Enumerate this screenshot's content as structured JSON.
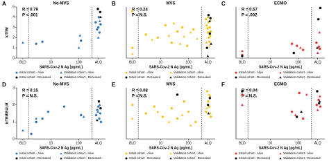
{
  "chart_data": [
    {
      "type": "scatter",
      "panel": "A",
      "title": "No-MVS",
      "annotations": [
        "R = 0.79",
        "P < .001"
      ],
      "x_label": "SARS-Cov-2 N Ag [pg/mL]",
      "y_label": "IcTRM",
      "x_scale": "log",
      "xlim": [
        0.6,
        900
      ],
      "xticks": [
        {
          "value": 1,
          "label": "BLD"
        },
        10,
        100,
        {
          "value": 500,
          "label": "ALQ"
        }
      ],
      "ylim": [
        0,
        5
      ],
      "yticks": [
        0,
        1,
        2,
        3,
        4,
        5
      ],
      "reference_lines": [
        1.6,
        300
      ],
      "series": [
        {
          "name": "Initial cohort - Alive",
          "color": "#2e75b6",
          "marker": "circle",
          "x": [
            3,
            5,
            120,
            400,
            450,
            500,
            520,
            550,
            600
          ],
          "values": [
            1.4,
            1.6,
            1.7,
            3.5,
            2.8,
            3.0,
            4.0,
            2.5,
            3.3
          ]
        },
        {
          "name": "Validation cohort - Alive",
          "color": "#2e75b6",
          "marker": "triangle",
          "x": [
            1,
            100,
            110,
            500,
            560
          ],
          "values": [
            1.5,
            1.0,
            2.2,
            2.0,
            3.6
          ]
        },
        {
          "name": "Initial cohort - Deceased",
          "color": "#000000",
          "marker": "circle",
          "x": [
            480,
            580
          ],
          "values": [
            4.8,
            4.5
          ]
        },
        {
          "name": "Validation cohort - Deceased",
          "color": "#000000",
          "marker": "triangle",
          "x": [
            600
          ],
          "values": [
            4.0
          ]
        }
      ]
    },
    {
      "type": "scatter",
      "panel": "B",
      "title": "MVS",
      "annotations": [
        "R = 0.24",
        "P = N.S."
      ],
      "x_label": "SARS-Cov-2 N Ag [pg/mL]",
      "x_scale": "log",
      "xlim": [
        0.6,
        900
      ],
      "xticks": [
        {
          "value": 1,
          "label": "BLD"
        },
        10,
        100,
        {
          "value": 500,
          "label": "ALQ"
        }
      ],
      "ylim": [
        0,
        5
      ],
      "reference_lines": [
        1.6,
        300
      ],
      "series": [
        {
          "name": "Initial cohort - Alive",
          "color": "#f2c01e",
          "marker": "circle",
          "x": [
            1,
            1,
            3,
            8,
            15,
            25,
            40,
            60,
            90,
            150,
            420,
            450,
            480,
            500,
            520,
            540,
            560,
            580,
            600,
            620
          ],
          "values": [
            4.6,
            1.0,
            2.3,
            2.0,
            3.2,
            1.5,
            2.6,
            3.0,
            1.2,
            2.8,
            3.8,
            3.2,
            2.9,
            2.5,
            3.5,
            2.0,
            1.6,
            3.0,
            2.2,
            2.6
          ]
        },
        {
          "name": "Validation cohort - Alive",
          "color": "#f2c01e",
          "marker": "triangle",
          "x": [
            1,
            5,
            20,
            30,
            50,
            70,
            120,
            200,
            440,
            500,
            560,
            620
          ],
          "values": [
            0.4,
            1.8,
            2.2,
            3.4,
            1.4,
            2.1,
            2.5,
            1.9,
            1.5,
            4.0,
            1.2,
            3.7
          ]
        },
        {
          "name": "Initial cohort - Deceased",
          "color": "#000000",
          "marker": "circle",
          "x": [
            460,
            520,
            580,
            610
          ],
          "values": [
            1.0,
            4.2,
            2.4,
            3.9
          ]
        },
        {
          "name": "Validation cohort - Deceased",
          "color": "#000000",
          "marker": "triangle",
          "x": [
            490,
            570,
            640
          ],
          "values": [
            0.2,
            3.6,
            1.4
          ]
        }
      ]
    },
    {
      "type": "scatter",
      "panel": "C",
      "title": "ECMO",
      "annotations": [
        "R = 0.57",
        "P = .002"
      ],
      "x_label": "SARS-Cov-2 N Ag [pg/mL]",
      "x_scale": "log",
      "xlim": [
        0.6,
        900
      ],
      "xticks": [
        {
          "value": 1,
          "label": "BLD"
        },
        10,
        100,
        {
          "value": 500,
          "label": "ALQ"
        }
      ],
      "ylim": [
        0,
        5
      ],
      "reference_lines": [
        1.6,
        300
      ],
      "series": [
        {
          "name": "Initial cohort - Alive",
          "color": "#e0302f",
          "marker": "circle",
          "x": [
            1,
            60,
            90,
            150,
            450,
            550,
            600
          ],
          "values": [
            0.3,
            1.4,
            1.2,
            0.8,
            1.5,
            1.1,
            0.9
          ]
        },
        {
          "name": "Validation cohort - Alive",
          "color": "#e0302f",
          "marker": "triangle",
          "x": [
            1,
            120,
            500,
            580
          ],
          "values": [
            0.7,
            1.0,
            0.5,
            2.5
          ]
        },
        {
          "name": "Initial cohort - Deceased",
          "color": "#000000",
          "marker": "circle",
          "x": [
            1,
            70,
            530,
            620
          ],
          "values": [
            0.2,
            0.5,
            3.8,
            4.9
          ]
        },
        {
          "name": "Validation cohort - Deceased",
          "color": "#000000",
          "marker": "triangle",
          "x": [
            480
          ],
          "values": [
            1.0
          ]
        }
      ]
    },
    {
      "type": "scatter",
      "panel": "D",
      "title": "No-MVS",
      "annotations": [
        "R = 0.15",
        "P = N.S."
      ],
      "x_label": "SARS-Cov-2 N Ag [pg/mL]",
      "y_label": "IcTRM/BALM",
      "x_scale": "log",
      "xlim": [
        0.6,
        900
      ],
      "xticks": [
        {
          "value": 1,
          "label": "BLD"
        },
        10,
        100,
        {
          "value": 500,
          "label": "ALQ"
        }
      ],
      "ylim": [
        0,
        3
      ],
      "yticks": [
        0,
        1,
        2,
        3
      ],
      "reference_lines": [
        1.6,
        300
      ],
      "series": [
        {
          "name": "Initial cohort - Alive",
          "color": "#2e75b6",
          "marker": "circle",
          "x": [
            2,
            3,
            5,
            8,
            30,
            120,
            420,
            460,
            500,
            540,
            580,
            620
          ],
          "values": [
            0.3,
            1.0,
            1.2,
            1.6,
            1.9,
            1.4,
            1.4,
            1.7,
            1.9,
            1.2,
            1.5,
            1.0
          ]
        },
        {
          "name": "Validation cohort - Alive",
          "color": "#2e75b6",
          "marker": "triangle",
          "x": [
            1,
            3,
            150,
            480,
            560
          ],
          "values": [
            0.5,
            1.2,
            1.3,
            1.6,
            2.0
          ]
        },
        {
          "name": "Initial cohort - Deceased",
          "color": "#000000",
          "marker": "circle",
          "x": [
            520,
            600
          ],
          "values": [
            2.2,
            1.8
          ]
        },
        {
          "name": "Validation cohort - Deceased",
          "color": "#000000",
          "marker": "triangle",
          "x": [
            450
          ],
          "values": [
            1.1
          ]
        }
      ]
    },
    {
      "type": "scatter",
      "panel": "E",
      "title": "MVS",
      "annotations": [
        "R = 0.08",
        "P = N.S."
      ],
      "x_label": "SARS-Cov-2 N Ag [pg/mL]",
      "x_scale": "log",
      "xlim": [
        0.6,
        900
      ],
      "xticks": [
        {
          "value": 1,
          "label": "BLD"
        },
        10,
        100,
        {
          "value": 500,
          "label": "ALQ"
        }
      ],
      "ylim": [
        0,
        3
      ],
      "reference_lines": [
        1.6,
        300
      ],
      "series": [
        {
          "name": "Initial cohort - Alive",
          "color": "#f2c01e",
          "marker": "circle",
          "x": [
            1,
            3,
            6,
            12,
            25,
            40,
            70,
            100,
            180,
            430,
            470,
            510,
            550,
            590,
            630
          ],
          "values": [
            2.0,
            1.5,
            1.9,
            1.3,
            1.8,
            1.2,
            2.2,
            1.6,
            1.0,
            1.6,
            2.8,
            2.2,
            1.9,
            2.5,
            1.3
          ]
        },
        {
          "name": "Validation cohort - Alive",
          "color": "#f2c01e",
          "marker": "triangle",
          "x": [
            1,
            8,
            20,
            60,
            120,
            450,
            540,
            610
          ],
          "values": [
            1.2,
            1.6,
            1.0,
            1.4,
            0.8,
            1.8,
            2.6,
            1.5
          ]
        },
        {
          "name": "Initial cohort - Deceased",
          "color": "#000000",
          "marker": "circle",
          "x": [
            40,
            500,
            580
          ],
          "values": [
            2.6,
            2.0,
            2.4
          ]
        },
        {
          "name": "Validation cohort - Deceased",
          "color": "#000000",
          "marker": "triangle",
          "x": [
            520
          ],
          "values": [
            1.5
          ]
        }
      ]
    },
    {
      "type": "scatter",
      "panel": "F",
      "title": "ECMO",
      "annotations": [
        "R = 0.04",
        "P = N.S."
      ],
      "x_label": "SARS-Cov-2 N Ag [pg/mL]",
      "x_scale": "log",
      "xlim": [
        0.6,
        900
      ],
      "xticks": [
        {
          "value": 1,
          "label": "BLD"
        },
        10,
        100,
        {
          "value": 500,
          "label": "ALQ"
        }
      ],
      "ylim": [
        0,
        3
      ],
      "reference_lines": [
        1.6,
        300
      ],
      "series": [
        {
          "name": "Initial cohort - Alive",
          "color": "#e0302f",
          "marker": "circle",
          "x": [
            1,
            60,
            110,
            150,
            460,
            540,
            620
          ],
          "values": [
            2.6,
            1.6,
            2.7,
            1.2,
            2.0,
            2.3,
            1.9
          ]
        },
        {
          "name": "Validation cohort - Alive",
          "color": "#e0302f",
          "marker": "triangle",
          "x": [
            1,
            80,
            200,
            500,
            600
          ],
          "values": [
            2.0,
            1.4,
            2.6,
            1.7,
            2.5
          ]
        },
        {
          "name": "Initial cohort - Deceased",
          "color": "#000000",
          "marker": "circle",
          "x": [
            1,
            90,
            480,
            560
          ],
          "values": [
            2.8,
            1.3,
            2.8,
            2.1
          ]
        },
        {
          "name": "Validation cohort - Deceased",
          "color": "#000000",
          "marker": "triangle",
          "x": [
            130,
            590
          ],
          "values": [
            1.6,
            2.2
          ]
        }
      ]
    }
  ]
}
